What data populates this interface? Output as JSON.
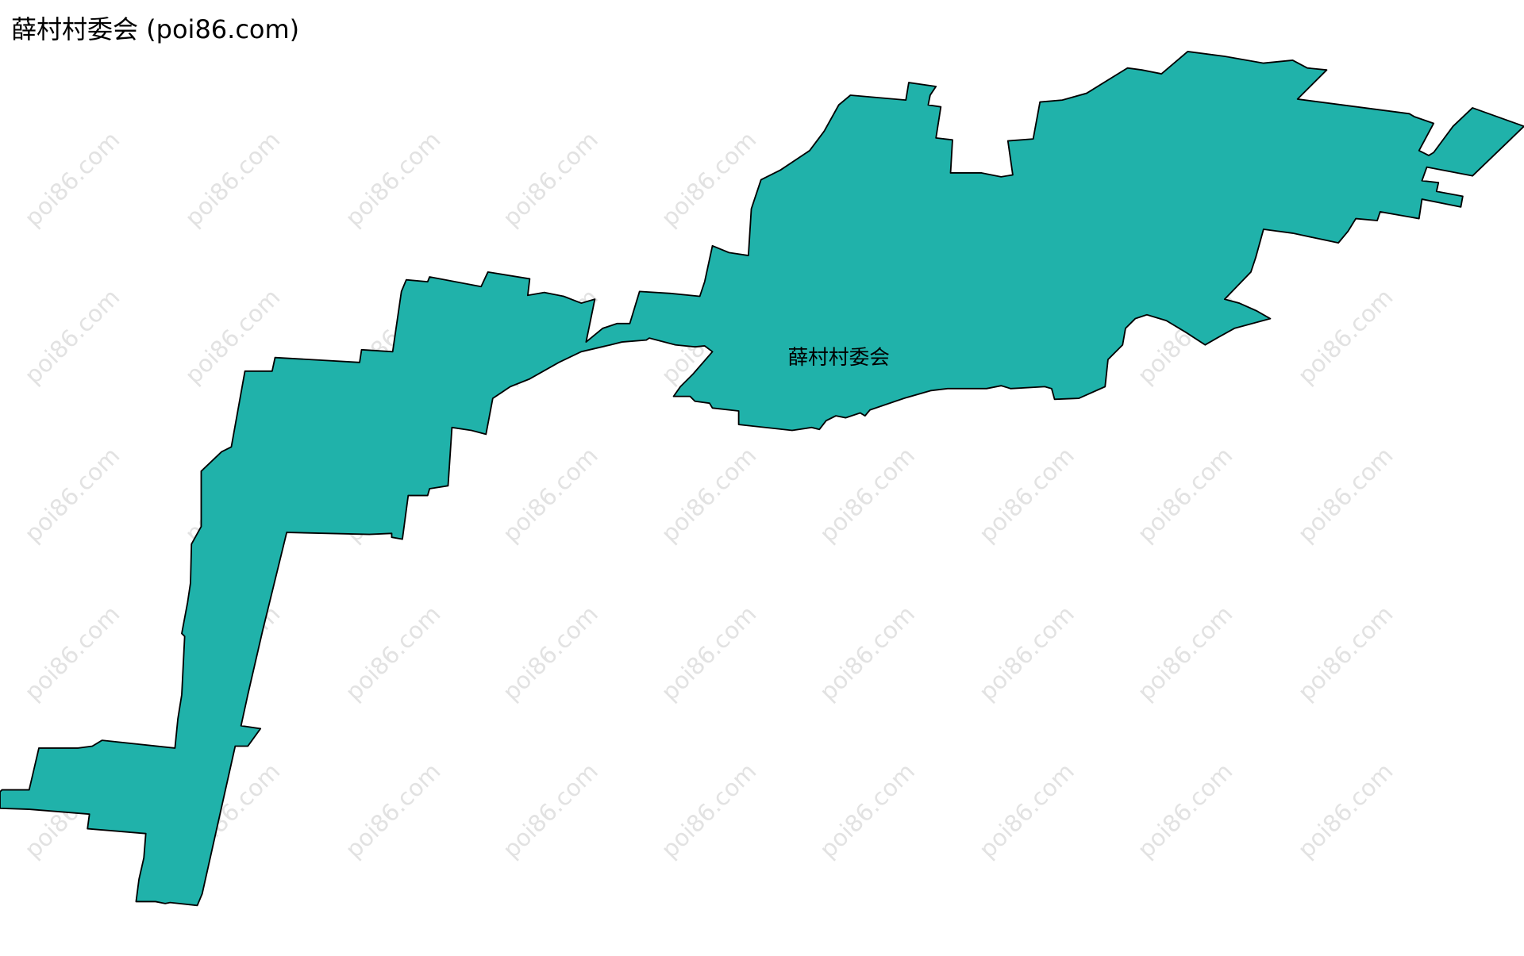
{
  "title": "薛村村委会 (poi86.com)",
  "region": {
    "label": "薛村村委会",
    "fill_color": "#20b2aa",
    "stroke_color": "#000000"
  },
  "watermark": {
    "text": "poi86.com",
    "color": "#d6d6d6"
  }
}
